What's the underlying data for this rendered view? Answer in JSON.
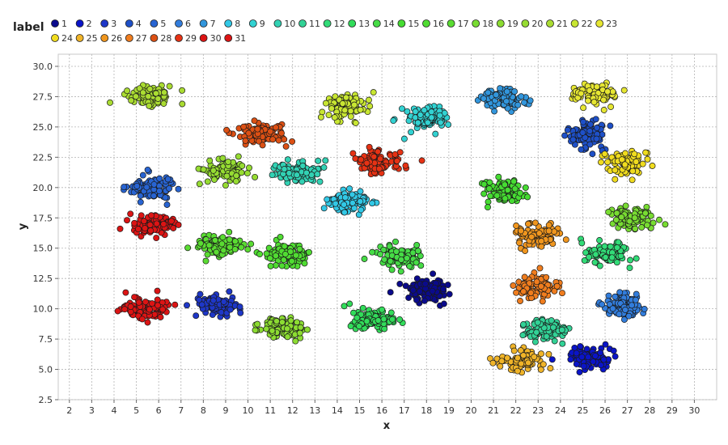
{
  "chart_data": {
    "type": "scatter",
    "title": "",
    "xlabel": "x",
    "ylabel": "y",
    "legend_title": "label",
    "legend_position": "top",
    "xlim": [
      1.5,
      31
    ],
    "ylim": [
      2.5,
      31
    ],
    "xticks": [
      2,
      3,
      4,
      5,
      6,
      7,
      8,
      9,
      10,
      11,
      12,
      13,
      14,
      15,
      16,
      17,
      18,
      19,
      20,
      21,
      22,
      23,
      24,
      25,
      26,
      27,
      28,
      29,
      30
    ],
    "yticks": [
      2.5,
      5.0,
      7.5,
      10.0,
      12.5,
      15.0,
      17.5,
      20.0,
      22.5,
      25.0,
      27.5,
      30.0
    ],
    "ytick_labels": [
      "2.5",
      "5.0",
      "7.5",
      "10.0",
      "12.5",
      "15.0",
      "17.5",
      "20.0",
      "22.5",
      "25.0",
      "27.5",
      "30.0"
    ],
    "grid": true,
    "series": [
      {
        "name": "1",
        "color": "#0a0a8c",
        "cx": 18.0,
        "cy": 11.5,
        "sx": 0.9,
        "sy": 0.8
      },
      {
        "name": "2",
        "color": "#0a14c8",
        "cx": 25.3,
        "cy": 6.0,
        "sx": 0.9,
        "sy": 0.8
      },
      {
        "name": "3",
        "color": "#1e37c8",
        "cx": 8.6,
        "cy": 10.3,
        "sx": 0.9,
        "sy": 0.8
      },
      {
        "name": "4",
        "color": "#1e50c8",
        "cx": 25.2,
        "cy": 24.3,
        "sx": 0.8,
        "sy": 0.9
      },
      {
        "name": "5",
        "color": "#2864d2",
        "cx": 5.6,
        "cy": 20.0,
        "sx": 0.9,
        "sy": 0.9
      },
      {
        "name": "6",
        "color": "#327ddc",
        "cx": 26.8,
        "cy": 10.3,
        "sx": 0.8,
        "sy": 0.9
      },
      {
        "name": "7",
        "color": "#3296dc",
        "cx": 21.5,
        "cy": 27.3,
        "sx": 0.9,
        "sy": 0.8
      },
      {
        "name": "8",
        "color": "#32c8e6",
        "cx": 14.5,
        "cy": 18.8,
        "sx": 0.9,
        "sy": 0.8
      },
      {
        "name": "9",
        "color": "#32d2d2",
        "cx": 18.1,
        "cy": 25.7,
        "sx": 0.9,
        "sy": 0.8
      },
      {
        "name": "10",
        "color": "#32d2b4",
        "cx": 12.3,
        "cy": 21.3,
        "sx": 0.9,
        "sy": 0.8
      },
      {
        "name": "11",
        "color": "#32d296",
        "cx": 23.3,
        "cy": 8.3,
        "sx": 0.9,
        "sy": 0.8
      },
      {
        "name": "12",
        "color": "#32dc78",
        "cx": 26.1,
        "cy": 14.5,
        "sx": 0.9,
        "sy": 0.8
      },
      {
        "name": "13",
        "color": "#32dc5a",
        "cx": 15.6,
        "cy": 9.1,
        "sx": 0.9,
        "sy": 0.8
      },
      {
        "name": "14",
        "color": "#46dc46",
        "cx": 16.8,
        "cy": 14.3,
        "sx": 0.9,
        "sy": 0.9
      },
      {
        "name": "15",
        "color": "#46dc32",
        "cx": 21.5,
        "cy": 19.7,
        "sx": 0.8,
        "sy": 0.8
      },
      {
        "name": "16",
        "color": "#50dc32",
        "cx": 11.7,
        "cy": 14.5,
        "sx": 0.9,
        "sy": 0.8
      },
      {
        "name": "17",
        "color": "#5adc32",
        "cx": 8.8,
        "cy": 15.2,
        "sx": 0.9,
        "sy": 0.8
      },
      {
        "name": "18",
        "color": "#78dc32",
        "cx": 27.2,
        "cy": 17.5,
        "sx": 0.8,
        "sy": 0.8
      },
      {
        "name": "19",
        "color": "#8cdc32",
        "cx": 11.5,
        "cy": 8.4,
        "sx": 0.9,
        "sy": 0.8
      },
      {
        "name": "20",
        "color": "#96dc32",
        "cx": 9.0,
        "cy": 21.4,
        "sx": 0.9,
        "sy": 0.9
      },
      {
        "name": "21",
        "color": "#aadc32",
        "cx": 5.6,
        "cy": 27.6,
        "sx": 0.9,
        "sy": 0.8
      },
      {
        "name": "22",
        "color": "#c8e632",
        "cx": 14.4,
        "cy": 26.7,
        "sx": 0.9,
        "sy": 0.8
      },
      {
        "name": "23",
        "color": "#e6e632",
        "cx": 25.5,
        "cy": 27.6,
        "sx": 0.9,
        "sy": 0.8
      },
      {
        "name": "24",
        "color": "#f0dc1e",
        "cx": 27.0,
        "cy": 22.0,
        "sx": 0.9,
        "sy": 0.8
      },
      {
        "name": "25",
        "color": "#f0b428",
        "cx": 22.2,
        "cy": 5.7,
        "sx": 0.9,
        "sy": 0.8
      },
      {
        "name": "26",
        "color": "#f0961e",
        "cx": 23.0,
        "cy": 16.0,
        "sx": 0.8,
        "sy": 0.8
      },
      {
        "name": "27",
        "color": "#f07d1e",
        "cx": 23.0,
        "cy": 11.8,
        "sx": 0.9,
        "sy": 0.8
      },
      {
        "name": "28",
        "color": "#dc5014",
        "cx": 10.6,
        "cy": 24.5,
        "sx": 0.9,
        "sy": 0.8
      },
      {
        "name": "29",
        "color": "#e63214",
        "cx": 15.8,
        "cy": 22.1,
        "sx": 0.9,
        "sy": 0.8
      },
      {
        "name": "30",
        "color": "#dc1414",
        "cx": 5.3,
        "cy": 10.1,
        "sx": 0.9,
        "sy": 0.8
      },
      {
        "name": "31",
        "color": "#dc1414",
        "cx": 5.8,
        "cy": 16.9,
        "sx": 0.9,
        "sy": 0.8
      }
    ]
  }
}
